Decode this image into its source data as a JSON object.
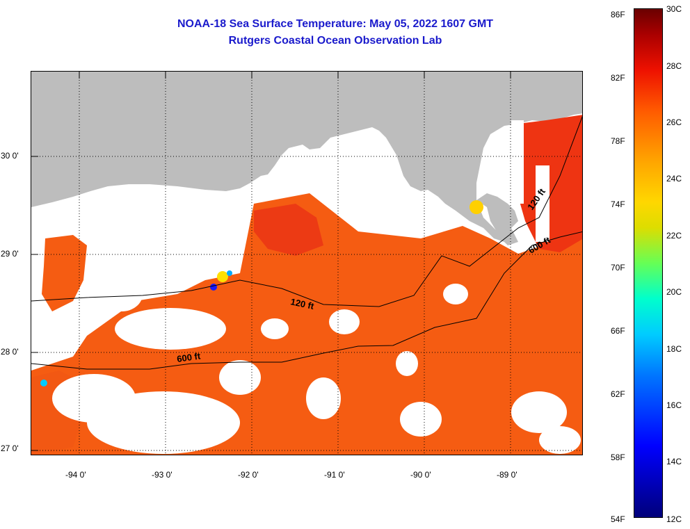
{
  "title": {
    "line1": "NOAA-18 Sea Surface Temperature:  May 05, 2022 1607 GMT",
    "line2": "Rutgers Coastal Ocean Observation Lab"
  },
  "map": {
    "lat_labels": [
      "30 0'",
      "29 0'",
      "28 0'",
      "27 0'"
    ],
    "lon_labels": [
      "-94 0'",
      "-93 0'",
      "-92 0'",
      "-91 0'",
      "-90 0'",
      "-89 0'"
    ],
    "contours": {
      "label_120_west": "120 ft",
      "label_120_east": "120 ft",
      "label_600_west": "600 ft",
      "label_600_east": "600 ft"
    },
    "colors": {
      "land": "#bdbdbd",
      "no_data": "#ffffff",
      "water_main": "#f55c12",
      "water_warm": "#ec2f10",
      "water_cool": "#ff8a1e"
    }
  },
  "colorbar": {
    "fahrenheit": [
      "86F",
      "82F",
      "78F",
      "74F",
      "70F",
      "66F",
      "62F",
      "58F",
      "54F"
    ],
    "celsius": [
      "30C",
      "28C",
      "26C",
      "24C",
      "22C",
      "20C",
      "18C",
      "16C",
      "14C",
      "12C"
    ]
  }
}
